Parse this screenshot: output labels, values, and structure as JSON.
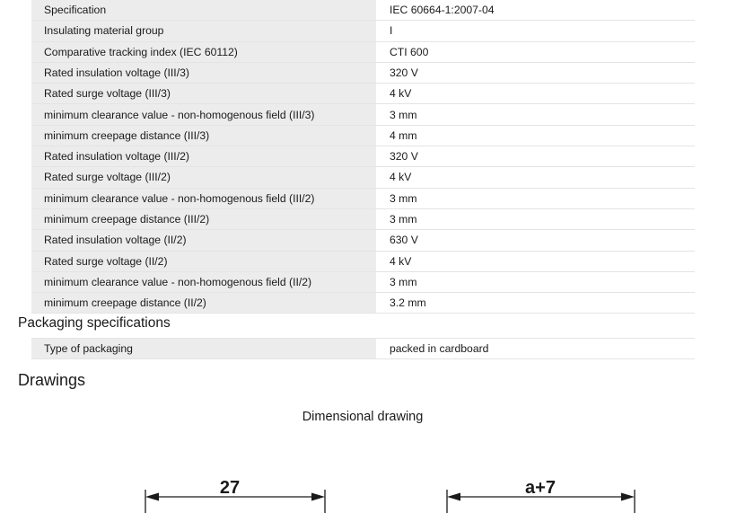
{
  "specs": [
    {
      "label": "Specification",
      "value": "IEC 60664-1:2007-04"
    },
    {
      "label": "Insulating material group",
      "value": "I"
    },
    {
      "label": "Comparative tracking index (IEC 60112)",
      "value": "CTI 600"
    },
    {
      "label": "Rated insulation voltage (III/3)",
      "value": "320 V"
    },
    {
      "label": "Rated surge voltage (III/3)",
      "value": "4 kV"
    },
    {
      "label": "minimum clearance value - non-homogenous field (III/3)",
      "value": "3 mm"
    },
    {
      "label": "minimum creepage distance (III/3)",
      "value": "4 mm"
    },
    {
      "label": "Rated insulation voltage (III/2)",
      "value": "320 V"
    },
    {
      "label": "Rated surge voltage (III/2)",
      "value": "4 kV"
    },
    {
      "label": "minimum clearance value - non-homogenous field (III/2)",
      "value": "3 mm"
    },
    {
      "label": "minimum creepage distance (III/2)",
      "value": "3 mm"
    },
    {
      "label": "Rated insulation voltage (II/2)",
      "value": "630 V"
    },
    {
      "label": "Rated surge voltage (II/2)",
      "value": "4 kV"
    },
    {
      "label": "minimum clearance value - non-homogenous field (II/2)",
      "value": "3 mm"
    },
    {
      "label": "minimum creepage distance (II/2)",
      "value": "3.2 mm"
    }
  ],
  "packaging": {
    "heading": "Packaging specifications",
    "rows": [
      {
        "label": "Type of packaging",
        "value": "packed in cardboard"
      }
    ]
  },
  "drawings": {
    "heading": "Drawings",
    "caption": "Dimensional drawing",
    "dimensions": [
      {
        "label": "27"
      },
      {
        "label": "a+7"
      }
    ]
  }
}
